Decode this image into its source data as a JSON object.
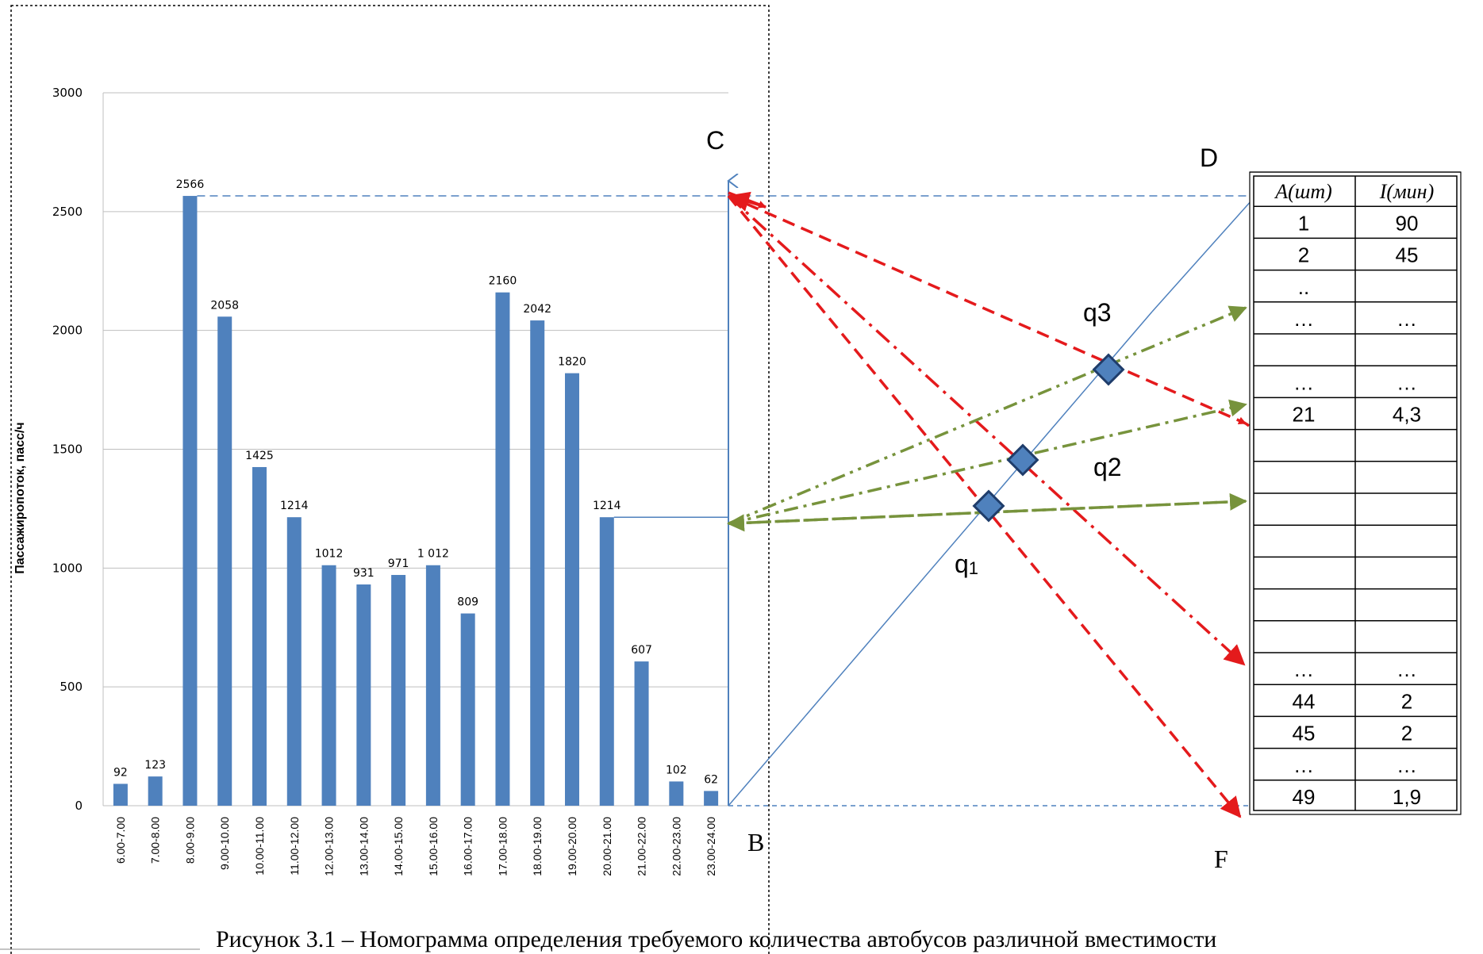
{
  "chart_data": {
    "type": "bar",
    "ylabel": "Пассажиропоток, пасс/ч",
    "ylim": [
      0,
      3000
    ],
    "yticks": [
      0,
      500,
      1000,
      1500,
      2000,
      2500,
      3000
    ],
    "grid": true,
    "color": "#4f81bd",
    "categories": [
      "6.00-7.00",
      "7.00-8.00",
      "8.00-9.00",
      "9.00-10.00",
      "10.00-11.00",
      "11.00-12.00",
      "12.00-13.00",
      "13.00-14.00",
      "14.00-15.00",
      "15.00-16.00",
      "16.00-17.00",
      "17.00-18.00",
      "18.00-19.00",
      "19.00-20.00",
      "20.00-21.00",
      "21.00-22.00",
      "22.00-23.00",
      "23.00-24.00"
    ],
    "values": [
      92,
      123,
      2566,
      2058,
      1425,
      1214,
      1012,
      931,
      971,
      1012,
      809,
      2160,
      2042,
      1820,
      1214,
      607,
      102,
      62
    ],
    "value_labels": [
      "92",
      "123",
      "2566",
      "2058",
      "1425",
      "1214",
      "1012",
      "931",
      "971",
      "1 012",
      "809",
      "2160",
      "2042",
      "1820",
      "1214",
      "607",
      "102",
      "62"
    ]
  },
  "nomogram": {
    "points": {
      "C": "C",
      "B": "B",
      "D": "D",
      "F": "F"
    },
    "q_labels": {
      "q1": "q",
      "q1_sub": "1",
      "q2": "q2",
      "q3": "q3"
    },
    "colors": {
      "axis": "#4f81bd",
      "red": "#e41a1c",
      "green": "#77933c",
      "marker": "#4f81bd",
      "marker_stroke": "#1f3d6b"
    }
  },
  "table": {
    "headers": [
      "А(шт)",
      "I(мин)"
    ],
    "rows": [
      [
        "1",
        "90"
      ],
      [
        "2",
        "45"
      ],
      [
        "..",
        ""
      ],
      [
        "…",
        "…"
      ],
      [
        "",
        ""
      ],
      [
        "…",
        "…"
      ],
      [
        "21",
        "4,3"
      ],
      [
        "",
        ""
      ],
      [
        "",
        ""
      ],
      [
        "",
        ""
      ],
      [
        "",
        ""
      ],
      [
        "",
        ""
      ],
      [
        "",
        ""
      ],
      [
        "",
        ""
      ],
      [
        "…",
        "…"
      ],
      [
        "44",
        "2"
      ],
      [
        "45",
        "2"
      ],
      [
        "…",
        "…"
      ],
      [
        "49",
        "1,9"
      ]
    ]
  },
  "caption": "Рисунок 3.1 – Номограмма определения требуемого количества автобусов различной вместимости"
}
